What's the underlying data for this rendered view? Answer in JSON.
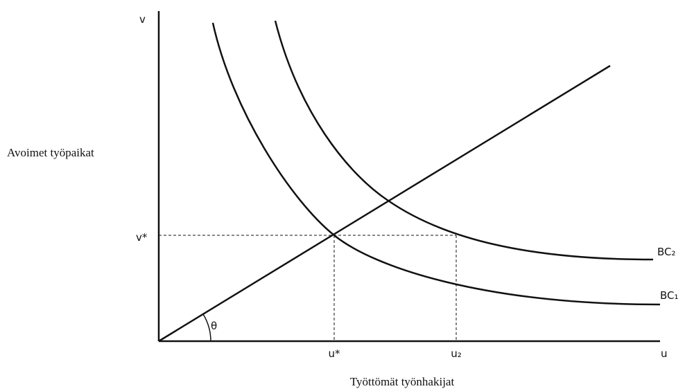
{
  "axes": {
    "y_symbol": "v",
    "x_symbol": "u",
    "y_label": "Avoimet työpaikat",
    "x_label": "Työttömät työnhakijat"
  },
  "markers": {
    "v_star": "v*",
    "u_star": "u*",
    "u2": "u₂"
  },
  "curves": {
    "bc2": "BC₂",
    "bc1": "BC₁"
  },
  "angle": "θ"
}
